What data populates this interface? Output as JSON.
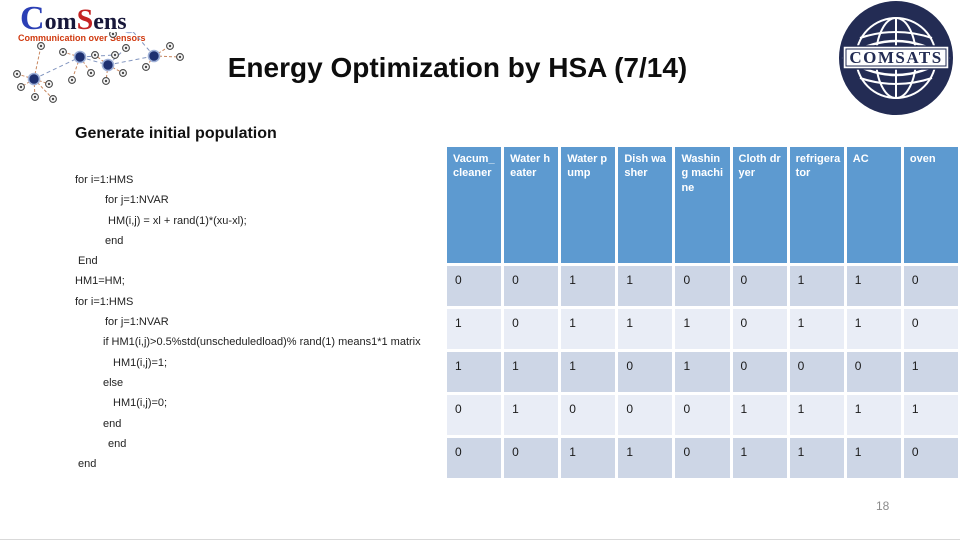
{
  "title": "Energy Optimization by HSA (7/14)",
  "section_heading": "Generate initial population",
  "page_number": "18",
  "logos": {
    "comsens": {
      "c": "C",
      "om": "om",
      "s": "S",
      "ens": "ens",
      "tagline": "Communication over Sensors"
    },
    "comsats_text": "COMSATS"
  },
  "code": {
    "lines": [
      {
        "text": "for i=1:HMS",
        "indent": 0
      },
      {
        "text": "for j=1:NVAR",
        "indent": 30
      },
      {
        "text": "HM(i,j) = xl + rand(1)*(xu-xl);",
        "indent": 33
      },
      {
        "text": "end",
        "indent": 30
      },
      {
        "text": "End",
        "indent": 3
      },
      {
        "text": "HM1=HM;",
        "indent": 0
      },
      {
        "text": "for i=1:HMS",
        "indent": 0
      },
      {
        "text": "for j=1:NVAR",
        "indent": 30
      },
      {
        "text": "if HM1(i,j)>0.5%std(unscheduledload)% rand(1) means1*1 matrix",
        "indent": 28
      },
      {
        "text": "HM1(i,j)=1;",
        "indent": 38
      },
      {
        "text": "else",
        "indent": 28
      },
      {
        "text": "HM1(i,j)=0;",
        "indent": 38
      },
      {
        "text": "end",
        "indent": 28
      },
      {
        "text": "end",
        "indent": 33
      },
      {
        "text": "end",
        "indent": 3
      }
    ]
  },
  "table": {
    "headers": [
      "Vacum_cleaner",
      "Water heater",
      "Water pump",
      "Dish washer",
      "Washing machine",
      "Cloth dryer",
      "refrigerator",
      "AC",
      "oven"
    ],
    "rows": [
      [
        0,
        0,
        1,
        1,
        0,
        0,
        1,
        1,
        0
      ],
      [
        1,
        0,
        1,
        1,
        1,
        0,
        1,
        1,
        0
      ],
      [
        1,
        1,
        1,
        0,
        1,
        0,
        0,
        0,
        1
      ],
      [
        0,
        1,
        0,
        0,
        0,
        1,
        1,
        1,
        1
      ],
      [
        0,
        0,
        1,
        1,
        0,
        1,
        1,
        1,
        0
      ]
    ],
    "colors": {
      "header_bg": "#5d9ad0",
      "header_text": "#ffffff",
      "row_dark": "#cdd6e6",
      "row_light": "#e9edf6"
    }
  },
  "brand_colors": {
    "comsens_blue": "#2b3fb5",
    "comsens_red": "#c42323",
    "tagline_red": "#d03a10",
    "comsats_navy": "#232c54"
  }
}
